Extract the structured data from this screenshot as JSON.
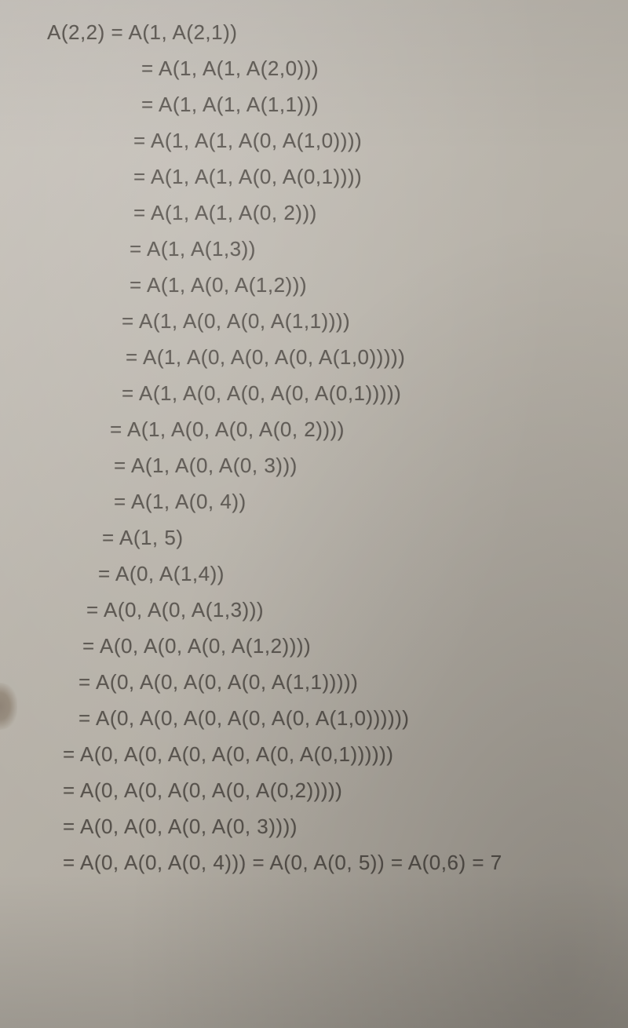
{
  "derivation": {
    "font_family": "handwritten",
    "text_color": "#55504a",
    "background_color_top": "#c9c4bd",
    "background_color_bottom": "#a8a298",
    "font_size_pt": 20,
    "lines": [
      {
        "indent": 0,
        "text": "A(2,2) = A(1, A(2,1))"
      },
      {
        "indent": 120,
        "text": "= A(1, A(1, A(2,0)))"
      },
      {
        "indent": 120,
        "text": "= A(1, A(1, A(1,1)))"
      },
      {
        "indent": 110,
        "text": "= A(1, A(1, A(0, A(1,0))))"
      },
      {
        "indent": 110,
        "text": "= A(1, A(1, A(0, A(0,1))))"
      },
      {
        "indent": 110,
        "text": "= A(1, A(1, A(0, 2)))"
      },
      {
        "indent": 105,
        "text": "= A(1, A(1,3))"
      },
      {
        "indent": 105,
        "text": "= A(1, A(0, A(1,2)))"
      },
      {
        "indent": 95,
        "text": "= A(1, A(0, A(0, A(1,1))))"
      },
      {
        "indent": 100,
        "text": "= A(1, A(0, A(0, A(0, A(1,0)))))"
      },
      {
        "indent": 95,
        "text": "= A(1, A(0, A(0, A(0, A(0,1)))))"
      },
      {
        "indent": 80,
        "text": "= A(1, A(0, A(0, A(0, 2))))"
      },
      {
        "indent": 85,
        "text": "= A(1, A(0, A(0, 3)))"
      },
      {
        "indent": 85,
        "text": "= A(1, A(0, 4))"
      },
      {
        "indent": 70,
        "text": "= A(1, 5)"
      },
      {
        "indent": 65,
        "text": "= A(0, A(1,4))"
      },
      {
        "indent": 50,
        "text": "= A(0, A(0, A(1,3)))"
      },
      {
        "indent": 45,
        "text": "= A(0, A(0, A(0, A(1,2))))"
      },
      {
        "indent": 40,
        "text": "= A(0, A(0, A(0, A(0, A(1,1)))))"
      },
      {
        "indent": 40,
        "text": "= A(0, A(0, A(0, A(0, A(0, A(1,0))))))"
      },
      {
        "indent": 20,
        "text": "= A(0, A(0, A(0, A(0, A(0, A(0,1))))))"
      },
      {
        "indent": 20,
        "text": "= A(0, A(0, A(0, A(0, A(0,2)))))"
      },
      {
        "indent": 20,
        "text": "= A(0, A(0, A(0, A(0, 3))))"
      },
      {
        "indent": 20,
        "text": "= A(0, A(0, A(0, 4))) = A(0, A(0, 5)) = A(0,6) = 7"
      }
    ]
  }
}
